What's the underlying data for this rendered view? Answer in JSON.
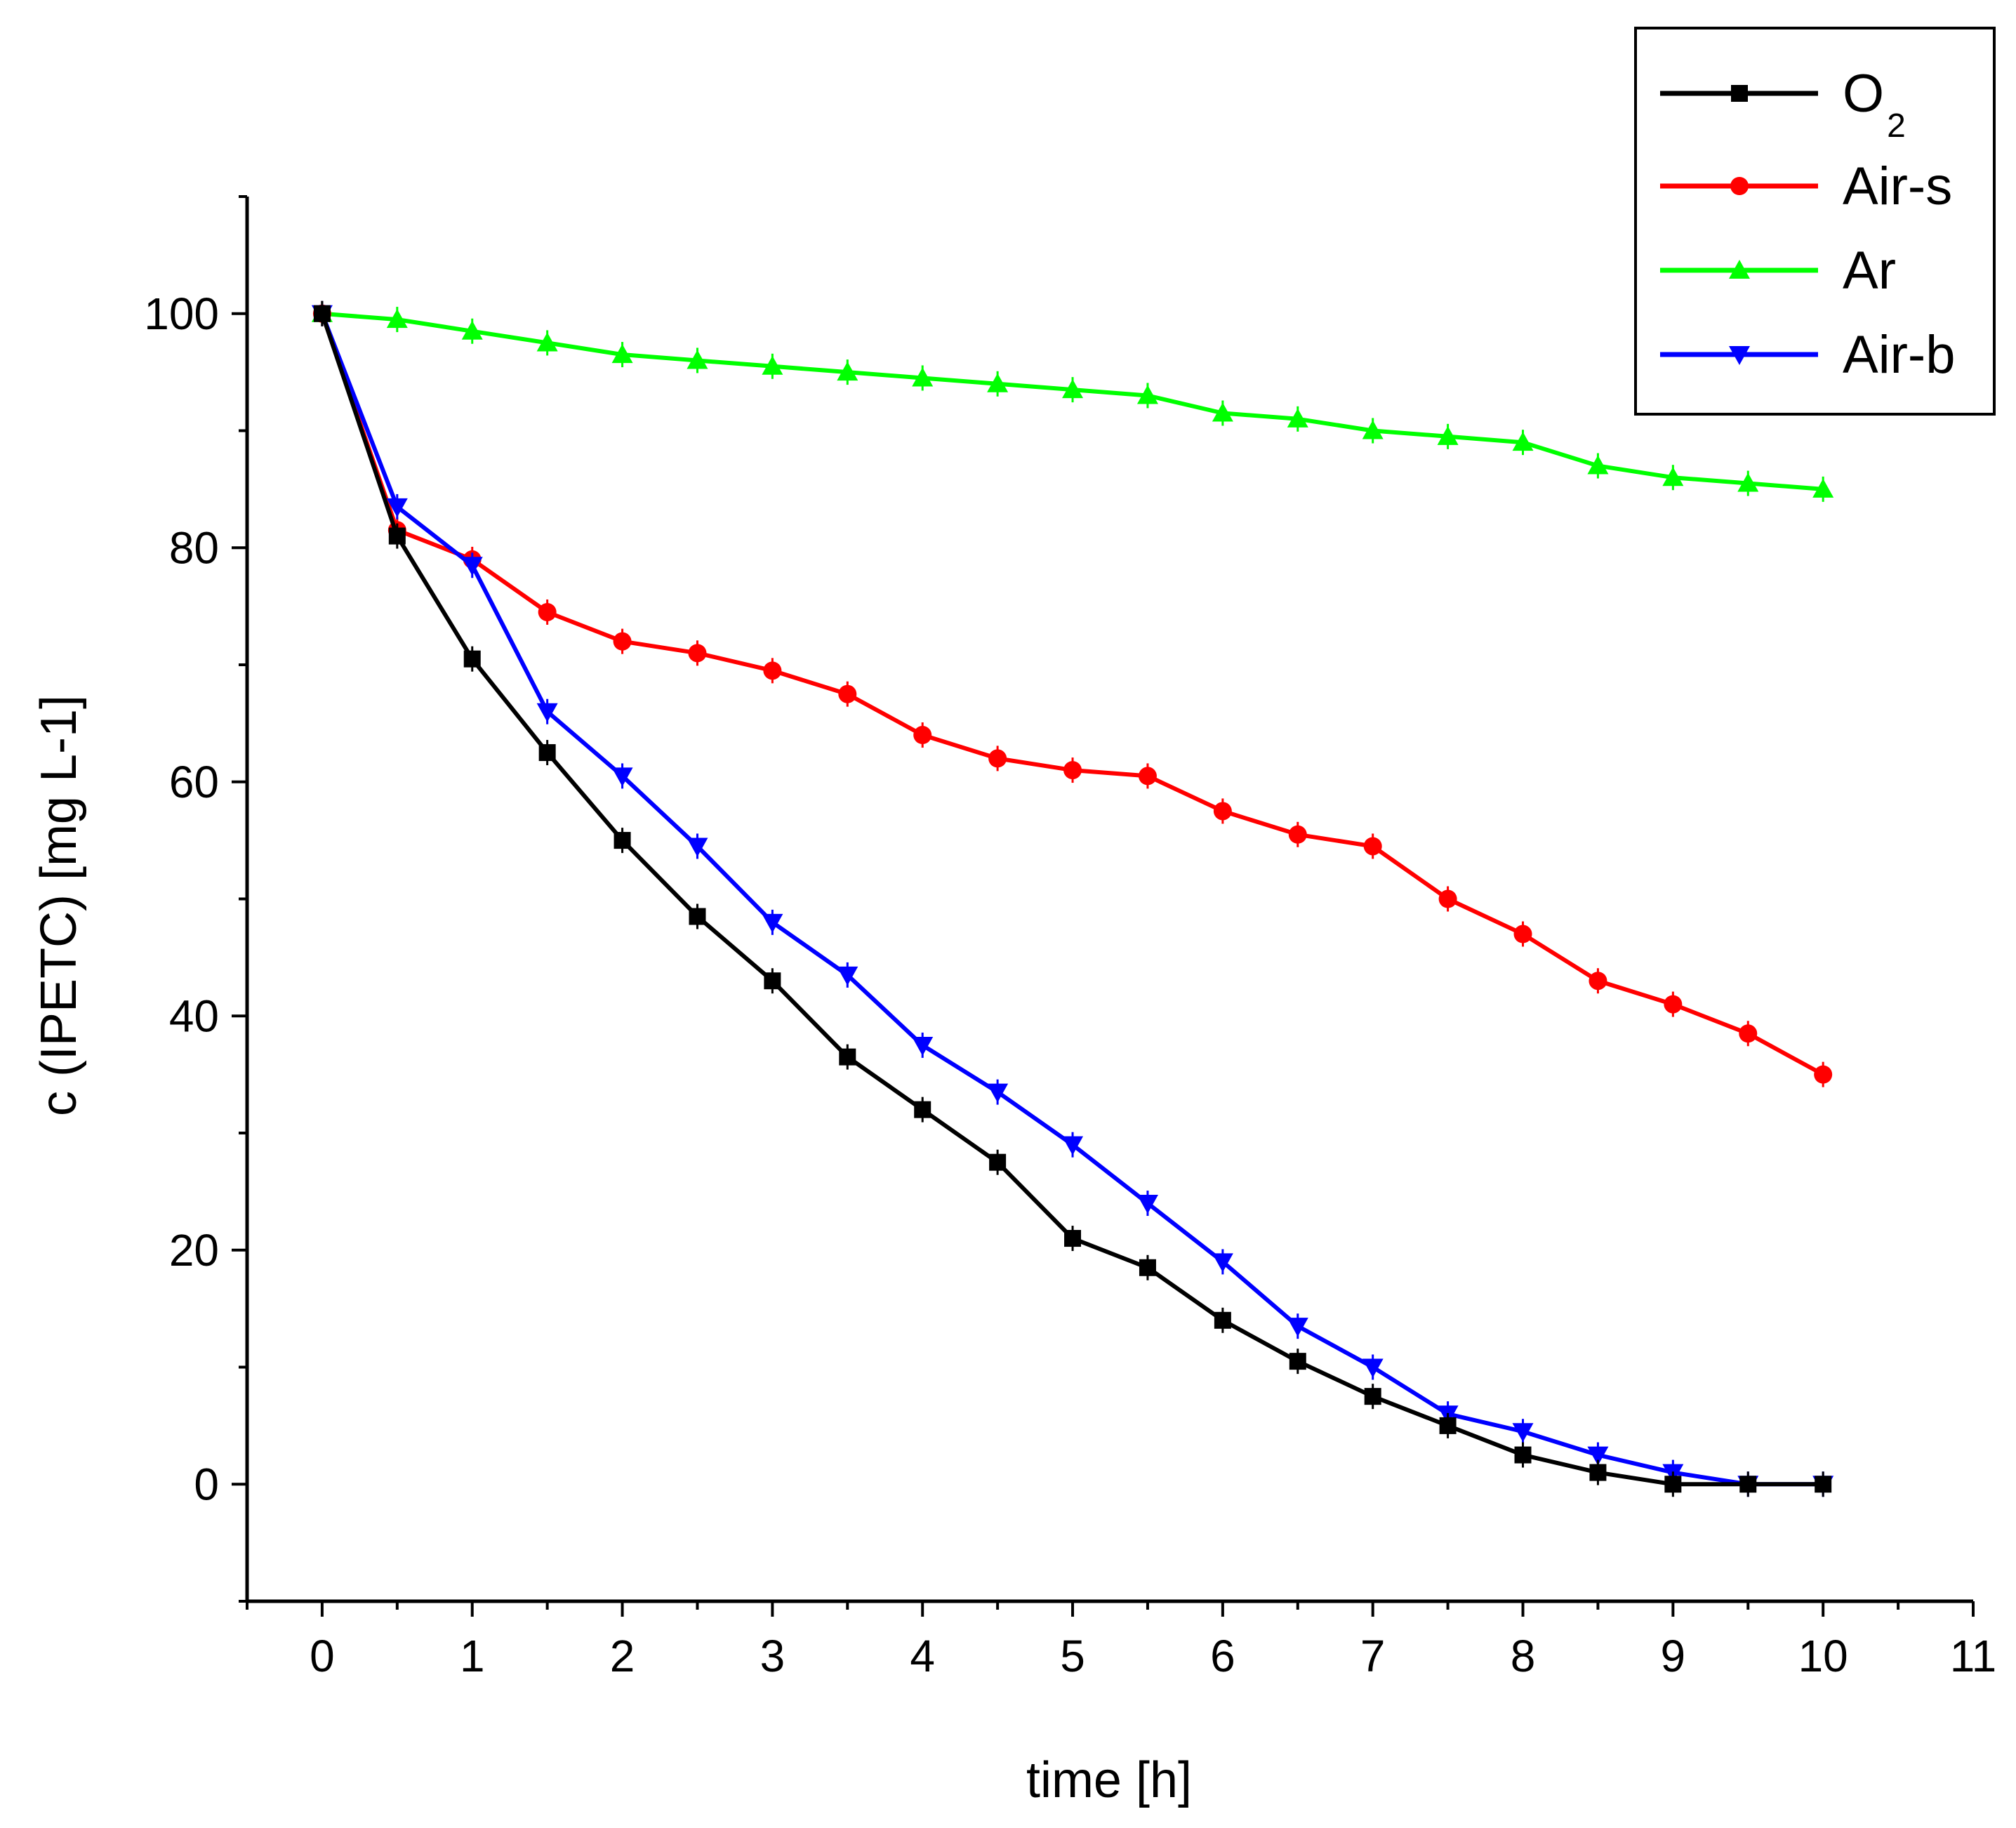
{
  "chart_data": {
    "type": "line",
    "title": "",
    "xlabel": "time [h]",
    "ylabel": "c (IPETC) [mg L-1]",
    "xlim": [
      -0.5,
      11
    ],
    "ylim": [
      -10,
      110
    ],
    "x_ticks": [
      0,
      1,
      2,
      3,
      4,
      5,
      6,
      7,
      8,
      9,
      10,
      11
    ],
    "y_ticks": [
      0,
      20,
      40,
      60,
      80,
      100
    ],
    "x_minor_step": 0.5,
    "y_minor_step": 10,
    "grid": false,
    "legend_position": "top-right",
    "x": [
      0,
      0.5,
      1,
      1.5,
      2,
      2.5,
      3,
      3.5,
      4,
      4.5,
      5,
      5.5,
      6,
      6.5,
      7,
      7.5,
      8,
      8.5,
      9,
      9.5,
      10
    ],
    "series": [
      {
        "name": "O2",
        "label_main": "O",
        "label_sub": "2",
        "color": "#000000",
        "marker": "square",
        "values": [
          100,
          81,
          70.5,
          62.5,
          55,
          48.5,
          43,
          36.5,
          32,
          27.5,
          21,
          18.5,
          14,
          10.5,
          7.5,
          5,
          2.5,
          1,
          0,
          0,
          0
        ]
      },
      {
        "name": "Air-s",
        "color": "#ff0000",
        "marker": "circle",
        "values": [
          100,
          81.5,
          79,
          74.5,
          72,
          71,
          69.5,
          67.5,
          64,
          62,
          61,
          60.5,
          57.5,
          55.5,
          54.5,
          50,
          47,
          43,
          41,
          38.5,
          35
        ]
      },
      {
        "name": "Ar",
        "color": "#00ff00",
        "marker": "triangle-up",
        "values": [
          100,
          99.5,
          98.5,
          97.5,
          96.5,
          96,
          95.5,
          95,
          94.5,
          94,
          93.5,
          93,
          91.5,
          91,
          90,
          89.5,
          89,
          87,
          86,
          85.5,
          85
        ]
      },
      {
        "name": "Air-b",
        "color": "#0000ff",
        "marker": "triangle-down",
        "values": [
          100,
          83.5,
          78.5,
          66,
          60.5,
          54.5,
          48,
          43.5,
          37.5,
          33.5,
          29,
          24,
          19,
          13.5,
          10,
          6,
          4.5,
          2.5,
          1,
          0,
          0
        ]
      }
    ]
  }
}
